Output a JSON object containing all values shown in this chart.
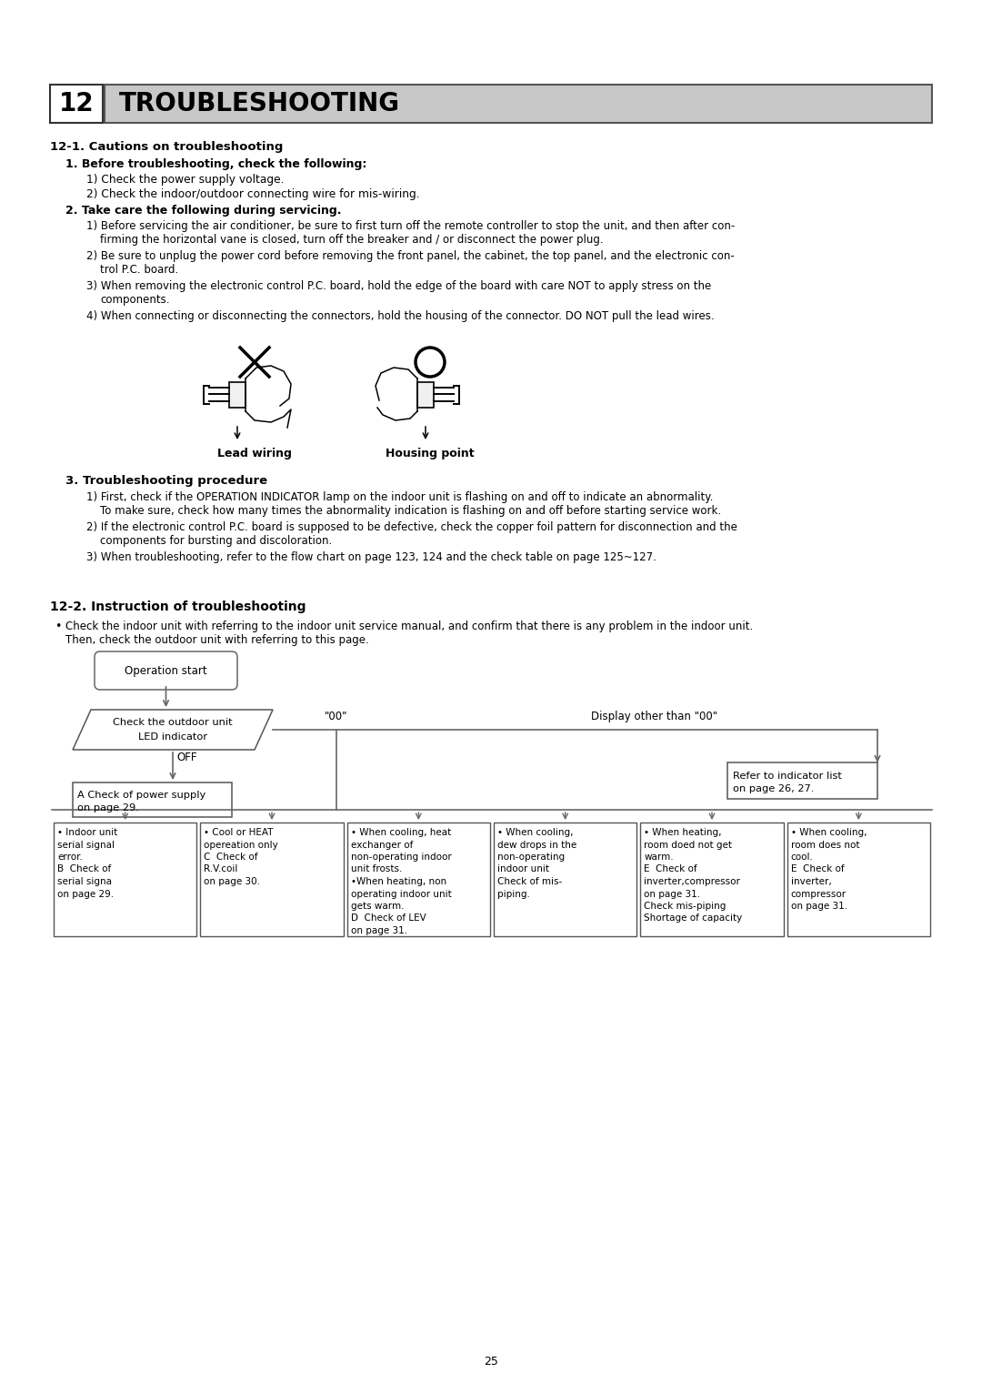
{
  "bg_color": "#ffffff",
  "title_num": "12",
  "title_text": "TROUBLESHOOTING",
  "title_bg": "#c8c8c8",
  "section1_heading": "12-1. Cautions on troubleshooting",
  "before_heading": "1. Before troubleshooting, check the following:",
  "before_items": [
    "1) Check the power supply voltage.",
    "2) Check the indoor/outdoor connecting wire for mis-wiring."
  ],
  "take_care_heading": "2. Take care the following during servicing.",
  "take_care_items_l1": [
    "1) Before servicing the air conditioner, be sure to first turn off the remote controller to stop the unit, and then after con-",
    "2) Be sure to unplug the power cord before removing the front panel, the cabinet, the top panel, and the electronic con-",
    "3) When removing the electronic control P.C. board, hold the edge of the board with care NOT to apply stress on the",
    "4) When connecting or disconnecting the connectors, hold the housing of the connector. DO NOT pull the lead wires."
  ],
  "take_care_items_l2": [
    "firming the horizontal vane is closed, turn off the breaker and / or disconnect the power plug.",
    "trol P.C. board.",
    "components.",
    null
  ],
  "label_lead": "Lead wiring",
  "label_housing": "Housing point",
  "section3_heading": "3. Troubleshooting procedure",
  "proc_l1": [
    "1) First, check if the OPERATION INDICATOR lamp on the indoor unit is flashing on and off to indicate an abnormality.",
    "2) If the electronic control P.C. board is supposed to be defective, check the copper foil pattern for disconnection and the",
    "3) When troubleshooting, refer to the flow chart on page 123, 124 and the check table on page 125~127."
  ],
  "proc_l2": [
    "To make sure, check how many times the abnormality indication is flashing on and off before starting service work.",
    "components for bursting and discoloration.",
    null
  ],
  "section2_heading": "12-2. Instruction of troubleshooting",
  "bullet_line1": "Check the indoor unit with referring to the indoor unit service manual, and confirm that there is any problem in the indoor unit.",
  "bullet_line2": "Then, check the outdoor unit with referring to this page.",
  "flow_op_start": "Operation start",
  "flow_check_line1": "Check the outdoor unit",
  "flow_check_line2": "LED indicator",
  "flow_off": "OFF",
  "flow_00": "\"00\"",
  "flow_other": "Display other than \"00\"",
  "flow_power_l1": "A Check of power supply",
  "flow_power_l2": "on page 29.",
  "flow_ind_l1": "Refer to indicator list",
  "flow_ind_l2": "on page 26, 27.",
  "bottom_boxes": [
    "• Indoor unit\nserial signal\nerror.\nB  Check of\nserial signa\non page 29.",
    "• Cool or HEAT\nopereation only\nC  Check of\nR.V.coil\non page 30.",
    "• When cooling, heat\nexchanger of\nnon-operating indoor\nunit frosts.\n•When heating, non\noperating indoor unit\ngets warm.\nD  Check of LEV\non page 31.",
    "• When cooling,\ndew drops in the\nnon-operating\nindoor unit\nCheck of mis-\npiping.",
    "• When heating,\nroom doed not get\nwarm.\nE  Check of\ninverter,compressor\non page 31.\nCheck mis-piping\nShortage of capacity",
    "• When cooling,\nroom does not\ncool.\nE  Check of\ninverter,\ncompressor\non page 31."
  ],
  "page_number": "25"
}
